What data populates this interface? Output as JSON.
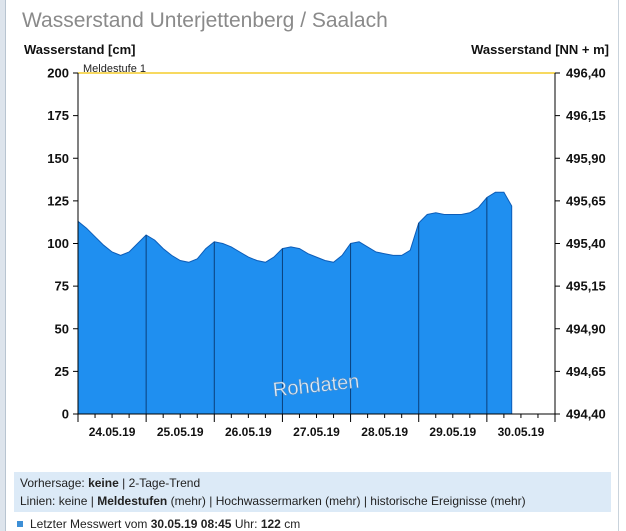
{
  "page": {
    "title": "Wasserstand Unterjettenberg / Saalach"
  },
  "chart_data": {
    "type": "area",
    "title": "Wasserstand Unterjettenberg / Saalach",
    "ylabel": "Wasserstand [cm]",
    "y2label": "Wasserstand [NN + m]",
    "ylim": [
      0,
      200
    ],
    "yticks": [
      0,
      25,
      50,
      75,
      100,
      125,
      150,
      175,
      200
    ],
    "y2ticks": [
      "494,40",
      "494,65",
      "494,90",
      "495,15",
      "495,40",
      "495,65",
      "495,90",
      "496,15",
      "496,40"
    ],
    "x_domain": [
      "2019-05-24T00:00",
      "2019-05-31T00:00"
    ],
    "xtick_labels": [
      "24.05.19",
      "25.05.19",
      "26.05.19",
      "27.05.19",
      "28.05.19",
      "29.05.19",
      "30.05.19"
    ],
    "threshold": {
      "label": "Meldestufe 1",
      "value": 200,
      "color": "#f2c200"
    },
    "annotation": "Rohdaten",
    "fill_color": "#1f8ff0",
    "grid": false,
    "series": [
      {
        "x": [
          "2019-05-24T00:00",
          "2019-05-24T03:00",
          "2019-05-24T06:00",
          "2019-05-24T09:00",
          "2019-05-24T12:00",
          "2019-05-24T15:00",
          "2019-05-24T18:00",
          "2019-05-24T21:00",
          "2019-05-25T00:00",
          "2019-05-25T03:00",
          "2019-05-25T06:00",
          "2019-05-25T09:00",
          "2019-05-25T12:00",
          "2019-05-25T15:00",
          "2019-05-25T18:00",
          "2019-05-25T21:00",
          "2019-05-26T00:00",
          "2019-05-26T03:00",
          "2019-05-26T06:00",
          "2019-05-26T09:00",
          "2019-05-26T12:00",
          "2019-05-26T15:00",
          "2019-05-26T18:00",
          "2019-05-26T21:00",
          "2019-05-27T00:00",
          "2019-05-27T03:00",
          "2019-05-27T06:00",
          "2019-05-27T09:00",
          "2019-05-27T12:00",
          "2019-05-27T15:00",
          "2019-05-27T18:00",
          "2019-05-27T21:00",
          "2019-05-28T00:00",
          "2019-05-28T03:00",
          "2019-05-28T06:00",
          "2019-05-28T09:00",
          "2019-05-28T12:00",
          "2019-05-28T15:00",
          "2019-05-28T18:00",
          "2019-05-28T21:00",
          "2019-05-29T00:00",
          "2019-05-29T03:00",
          "2019-05-29T06:00",
          "2019-05-29T09:00",
          "2019-05-29T12:00",
          "2019-05-29T15:00",
          "2019-05-29T18:00",
          "2019-05-29T21:00",
          "2019-05-30T00:00",
          "2019-05-30T03:00",
          "2019-05-30T06:00",
          "2019-05-30T08:45"
        ],
        "y": [
          113,
          109,
          104,
          99,
          95,
          93,
          95,
          100,
          105,
          102,
          97,
          93,
          90,
          89,
          91,
          97,
          101,
          100,
          98,
          95,
          92,
          90,
          89,
          92,
          97,
          98,
          97,
          94,
          92,
          90,
          89,
          93,
          100,
          101,
          98,
          95,
          94,
          93,
          93,
          96,
          112,
          117,
          118,
          117,
          117,
          117,
          118,
          121,
          127,
          130,
          130,
          122
        ]
      }
    ]
  },
  "forecast": {
    "label": "Vorhersage:",
    "value": "keine",
    "separator": "|",
    "trend": "2-Tage-Trend"
  },
  "lines": {
    "label": "Linien:",
    "none": "keine",
    "sep1": "|",
    "meldestufen": "Meldestufen",
    "meldestufen_more": "(mehr)",
    "sep2": "|",
    "hochwasser": "Hochwassermarken",
    "hochwasser_more": "(mehr)",
    "sep3": "|",
    "historisch": "historische Ereignisse",
    "historisch_more": "(mehr)"
  },
  "last_value": {
    "prefix": "Letzter Messwert vom",
    "datetime": "30.05.19 08:45",
    "unit_label": "Uhr:",
    "value": "122",
    "unit": "cm"
  }
}
